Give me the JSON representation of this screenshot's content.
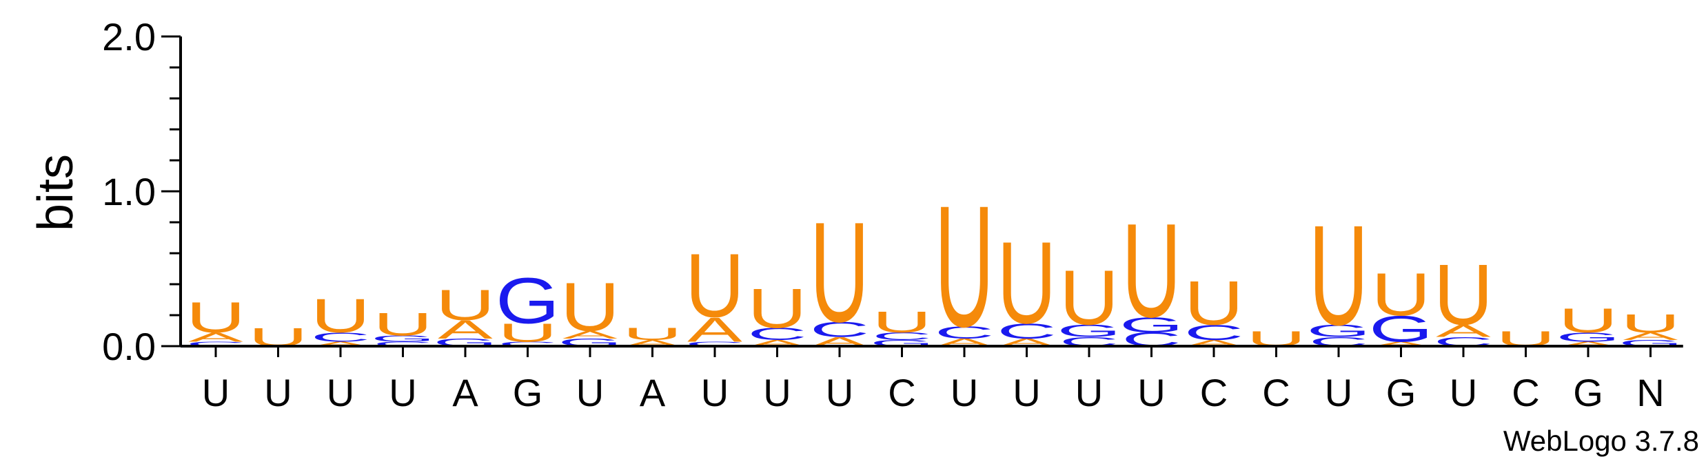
{
  "chart_data": {
    "type": "sequence-logo",
    "ylabel": "bits",
    "ylim": [
      0,
      2
    ],
    "yticks": [
      "0.0",
      "1.0",
      "2.0"
    ],
    "credit": "WebLogo 3.7.8",
    "colors": {
      "U": "#f58a0a",
      "A": "#f58a0a",
      "G": "#1a1aee",
      "C": "#1a1aee"
    },
    "columns": [
      {
        "label": "U",
        "stack": [
          [
            "U",
            0.2
          ],
          [
            "A",
            0.06
          ],
          [
            "C",
            0.03
          ]
        ]
      },
      {
        "label": "U",
        "stack": [
          [
            "U",
            0.12
          ]
        ]
      },
      {
        "label": "U",
        "stack": [
          [
            "U",
            0.22
          ],
          [
            "C",
            0.06
          ],
          [
            "A",
            0.03
          ]
        ]
      },
      {
        "label": "U",
        "stack": [
          [
            "U",
            0.15
          ],
          [
            "G",
            0.04
          ],
          [
            "C",
            0.03
          ]
        ]
      },
      {
        "label": "A",
        "stack": [
          [
            "U",
            0.2
          ],
          [
            "A",
            0.12
          ],
          [
            "G",
            0.05
          ]
        ]
      },
      {
        "label": "G",
        "stack": [
          [
            "G",
            0.3
          ],
          [
            "U",
            0.12
          ],
          [
            "C",
            0.03
          ]
        ]
      },
      {
        "label": "U",
        "stack": [
          [
            "U",
            0.32
          ],
          [
            "G",
            0.05
          ],
          [
            "A",
            0.05
          ]
        ]
      },
      {
        "label": "A",
        "stack": [
          [
            "U",
            0.08
          ],
          [
            "A",
            0.04
          ]
        ]
      },
      {
        "label": "U",
        "stack": [
          [
            "U",
            0.42
          ],
          [
            "A",
            0.16
          ],
          [
            "C",
            0.03
          ]
        ]
      },
      {
        "label": "U",
        "stack": [
          [
            "U",
            0.26
          ],
          [
            "C",
            0.08
          ],
          [
            "A",
            0.04
          ]
        ]
      },
      {
        "label": "U",
        "stack": [
          [
            "U",
            0.66
          ],
          [
            "C",
            0.1
          ],
          [
            "A",
            0.06
          ]
        ]
      },
      {
        "label": "C",
        "stack": [
          [
            "U",
            0.14
          ],
          [
            "C",
            0.05
          ],
          [
            "G",
            0.04
          ]
        ]
      },
      {
        "label": "U",
        "stack": [
          [
            "U",
            0.8
          ],
          [
            "C",
            0.08
          ],
          [
            "A",
            0.05
          ]
        ]
      },
      {
        "label": "U",
        "stack": [
          [
            "U",
            0.54
          ],
          [
            "C",
            0.1
          ],
          [
            "A",
            0.05
          ]
        ]
      },
      {
        "label": "U",
        "stack": [
          [
            "U",
            0.36
          ],
          [
            "G",
            0.08
          ],
          [
            "C",
            0.06
          ]
        ]
      },
      {
        "label": "U",
        "stack": [
          [
            "U",
            0.62
          ],
          [
            "G",
            0.1
          ],
          [
            "C",
            0.09
          ]
        ]
      },
      {
        "label": "C",
        "stack": [
          [
            "U",
            0.29
          ],
          [
            "C",
            0.1
          ],
          [
            "A",
            0.04
          ]
        ]
      },
      {
        "label": "C",
        "stack": [
          [
            "U",
            0.1
          ]
        ]
      },
      {
        "label": "U",
        "stack": [
          [
            "U",
            0.66
          ],
          [
            "G",
            0.08
          ],
          [
            "C",
            0.06
          ]
        ]
      },
      {
        "label": "G",
        "stack": [
          [
            "U",
            0.28
          ],
          [
            "G",
            0.17
          ],
          [
            "A",
            0.03
          ]
        ]
      },
      {
        "label": "U",
        "stack": [
          [
            "U",
            0.4
          ],
          [
            "A",
            0.08
          ],
          [
            "C",
            0.06
          ]
        ]
      },
      {
        "label": "C",
        "stack": [
          [
            "U",
            0.1
          ]
        ]
      },
      {
        "label": "G",
        "stack": [
          [
            "U",
            0.16
          ],
          [
            "G",
            0.06
          ],
          [
            "A",
            0.03
          ]
        ]
      },
      {
        "label": "N",
        "stack": [
          [
            "U",
            0.12
          ],
          [
            "A",
            0.05
          ],
          [
            "G",
            0.04
          ]
        ]
      }
    ]
  }
}
